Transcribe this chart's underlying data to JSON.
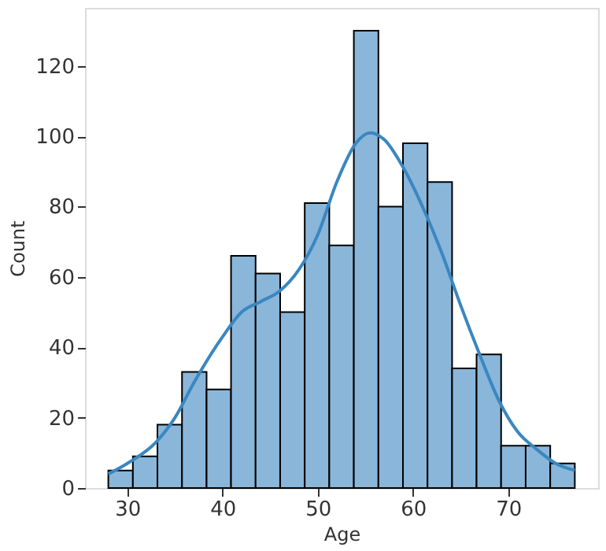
{
  "chart_data": {
    "type": "histogram",
    "xlabel": "Age",
    "ylabel": "Count",
    "bins": [
      28,
      30.58,
      33.16,
      35.74,
      38.32,
      40.89,
      43.47,
      46.05,
      48.63,
      51.21,
      53.79,
      56.37,
      58.95,
      61.53,
      64.11,
      66.68,
      69.26,
      71.84,
      74.42,
      77
    ],
    "values": [
      5,
      9,
      18,
      33,
      28,
      66,
      61,
      50,
      81,
      69,
      130,
      80,
      98,
      87,
      34,
      38,
      12,
      12,
      7
    ],
    "color": "#8ab6da",
    "series": [
      {
        "type": "line",
        "color": "#3a87c0",
        "x": [
          28,
          30,
          33,
          35,
          37,
          40,
          42,
          44,
          46,
          48,
          50,
          52,
          54,
          55.5,
          57,
          59,
          61,
          63,
          65,
          67,
          69,
          71,
          73,
          75,
          77
        ],
        "values": [
          4,
          7,
          13,
          20,
          30,
          43,
          50,
          53,
          56,
          62,
          72,
          87,
          98,
          101,
          99,
          91,
          80,
          67,
          52,
          38,
          25,
          16,
          11,
          7,
          5
        ]
      }
    ],
    "xlim": [
      25.55,
      79.45
    ],
    "xticks": [
      30,
      40,
      50,
      60,
      70
    ],
    "ylim": [
      0,
      136.5
    ],
    "yticks": [
      0,
      20,
      40,
      60,
      80,
      100,
      120
    ],
    "grid": false
  }
}
